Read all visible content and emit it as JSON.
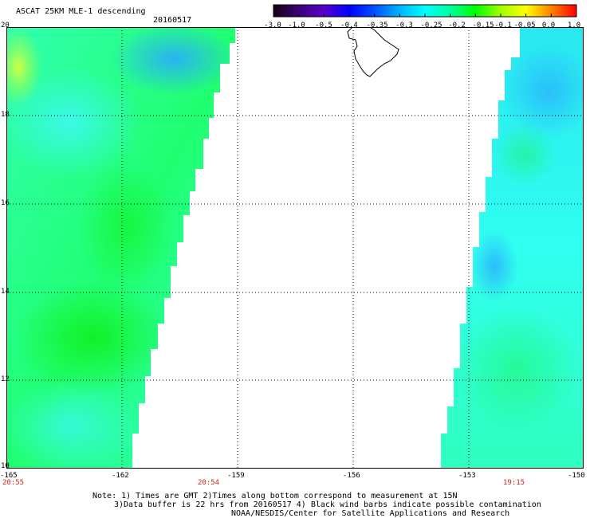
{
  "header": {
    "title": "ASCAT 25KM MLE-1 descending",
    "date": "20160517"
  },
  "colorbar": {
    "labels": [
      "-3.0",
      "-1.0",
      "-0.5",
      "-0.4",
      "-0.35",
      "-0.3",
      "-0.25",
      "-0.2",
      "-0.15",
      "-0.1",
      "-0.05",
      "0.0",
      "1.0"
    ],
    "colors": [
      "#140014",
      "#3c0078",
      "#5a00c8",
      "#0000ff",
      "#0050ff",
      "#00b4ff",
      "#00ffff",
      "#00ffa0",
      "#00ff00",
      "#a0ff00",
      "#ffff00",
      "#ff8000",
      "#ff0000"
    ]
  },
  "map": {
    "lat_labels": [
      "20",
      "18",
      "16",
      "14",
      "12",
      "10"
    ],
    "lon_labels": [
      "-165",
      "-162",
      "-159",
      "-156",
      "-153",
      "-150"
    ],
    "time_labels": [
      "20:55",
      "20:54",
      "19:15"
    ]
  },
  "notes": {
    "line1": "Note: 1) Times are GMT 2)Times along bottom correspond to measurement at 15N",
    "line2": "3)Data buffer is 22 hrs from 20160517 4) Black wind barbs indicate possible contamination",
    "line3": "NOAA/NESDIS/Center for Satellite Applications and Research"
  }
}
